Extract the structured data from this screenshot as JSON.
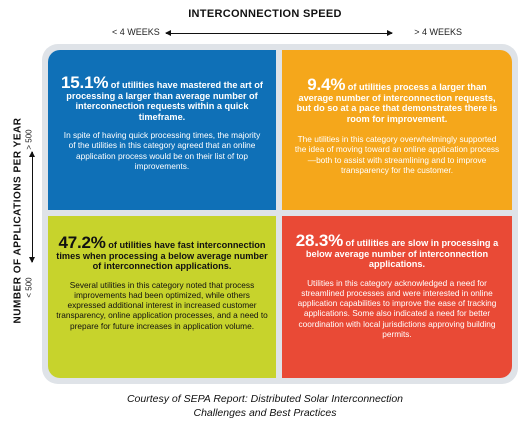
{
  "chart_title": "INTERCONNECTION SPEED",
  "x_axis": {
    "left_label": "< 4 WEEKS",
    "right_label": "> 4 WEEKS"
  },
  "y_axis": {
    "label": "NUMBER OF APPLICATIONS PER YEAR",
    "top_label": "> 500",
    "bottom_label": "< 500"
  },
  "colors": {
    "top_left": "#0f70b7",
    "top_right": "#f5a71b",
    "bottom_left": "#c7d32c",
    "bottom_right": "#e94a36"
  },
  "quadrants": {
    "top_left": {
      "percent": "15.1%",
      "headline": " of utilities have mastered the art of processing a larger than average number of interconnection requests within a quick timeframe.",
      "body": "In spite of having quick processing times, the majority of the utilities in this category agreed that an online application process would be on their list of top improvements."
    },
    "top_right": {
      "percent": "9.4%",
      "headline": " of utilities process a larger than average number of interconnection requests, but do so at a pace that demonstrates there is room for improvement.",
      "body": "The utilities in this category overwhelmingly supported the idea of moving toward an online application process—both to assist with streamlining and to improve transparency for the customer."
    },
    "bottom_left": {
      "percent": "47.2%",
      "headline": " of utilities have fast interconnection times when processing a below average number of interconnection applications.",
      "body": "Several utilities in this category noted that process improvements had been optimized, while others expressed additional interest in increased customer transparency, online application processes, and a need to prepare for future increases in application volume."
    },
    "bottom_right": {
      "percent": "28.3%",
      "headline": " of utilities are slow in processing a below average number of interconnection applications.",
      "body": "Utilities in this category acknowledged a need for streamlined processes and were interested in online application capabilities to improve the ease of tracking applications. Some also indicated a need for better coordination with local jurisdictions approving building permits."
    }
  },
  "footer": {
    "line1": "Courtesy of SEPA Report: Distributed Solar Interconnection",
    "line2": "Challenges and Best Practices"
  }
}
